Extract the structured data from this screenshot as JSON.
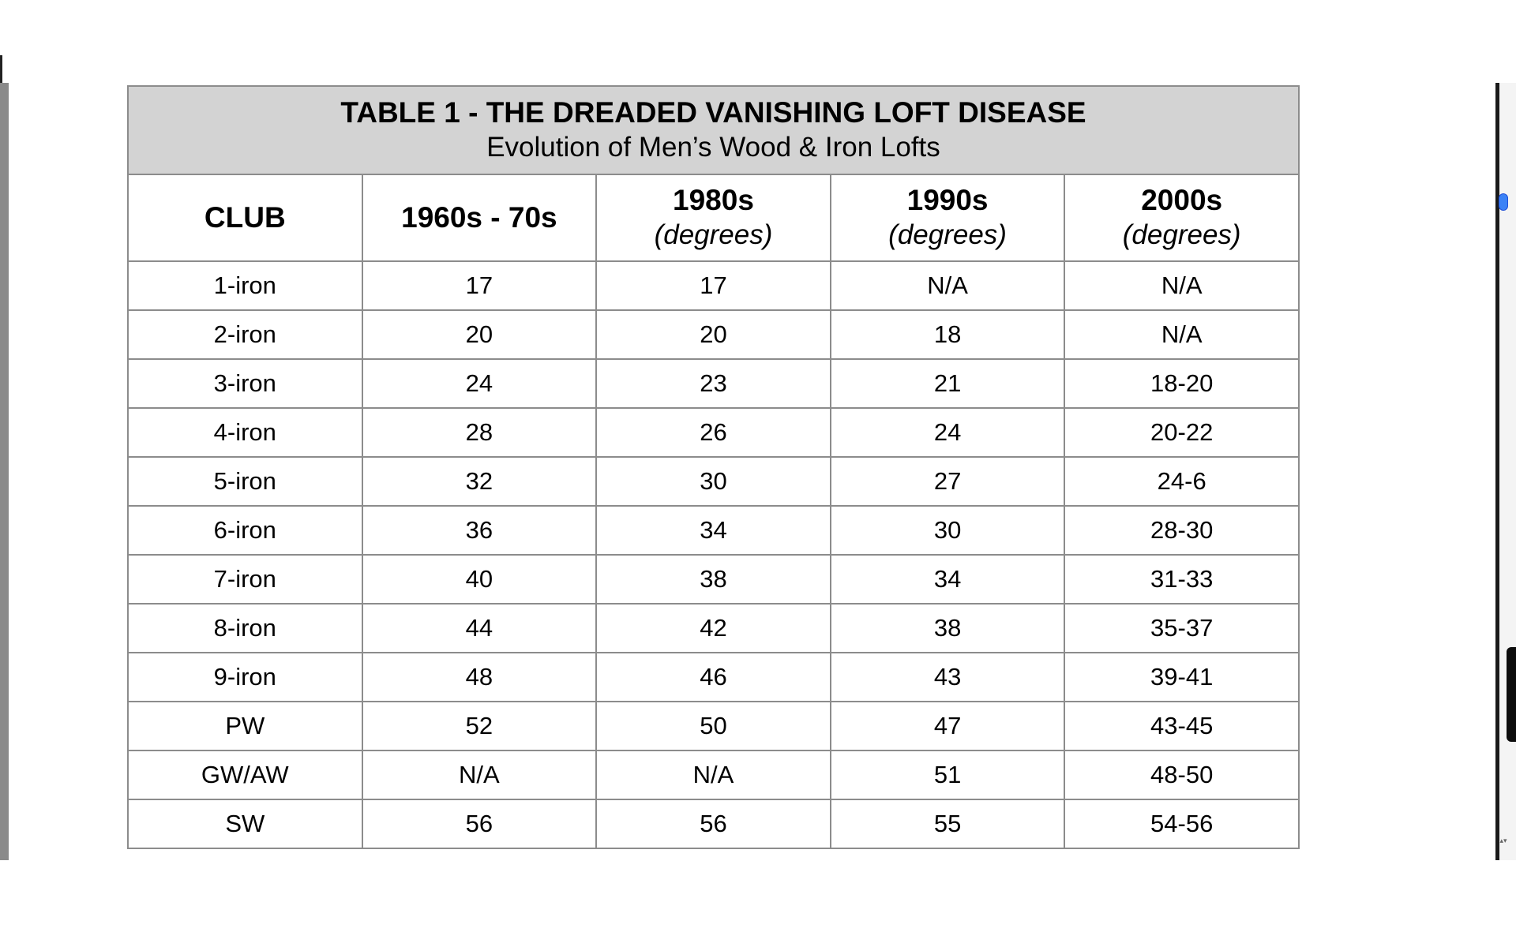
{
  "table": {
    "title": "TABLE 1 - THE DREADED VANISHING LOFT DISEASE",
    "subtitle": "Evolution of Men’s Wood & Iron Lofts",
    "headers": [
      {
        "main": "CLUB",
        "unit": ""
      },
      {
        "main": "1960s - 70s",
        "unit": ""
      },
      {
        "main": "1980s",
        "unit": "(degrees)"
      },
      {
        "main": "1990s",
        "unit": "(degrees)"
      },
      {
        "main": "2000s",
        "unit": "(degrees)"
      }
    ],
    "rows": [
      [
        "1-iron",
        "17",
        "17",
        "N/A",
        "N/A"
      ],
      [
        "2-iron",
        "20",
        "20",
        "18",
        "N/A"
      ],
      [
        "3-iron",
        "24",
        "23",
        "21",
        "18-20"
      ],
      [
        "4-iron",
        "28",
        "26",
        "24",
        "20-22"
      ],
      [
        "5-iron",
        "32",
        "30",
        "27",
        "24-6"
      ],
      [
        "6-iron",
        "36",
        "34",
        "30",
        "28-30"
      ],
      [
        "7-iron",
        "40",
        "38",
        "34",
        "31-33"
      ],
      [
        "8-iron",
        "44",
        "42",
        "38",
        "35-37"
      ],
      [
        "9-iron",
        "48",
        "46",
        "43",
        "39-41"
      ],
      [
        "PW",
        "52",
        "50",
        "47",
        "43-45"
      ],
      [
        "GW/AW",
        "N/A",
        "N/A",
        "51",
        "48-50"
      ],
      [
        "SW",
        "56",
        "56",
        "55",
        "54-56"
      ]
    ]
  },
  "scrollbar": {
    "arrows": "▴▾"
  }
}
